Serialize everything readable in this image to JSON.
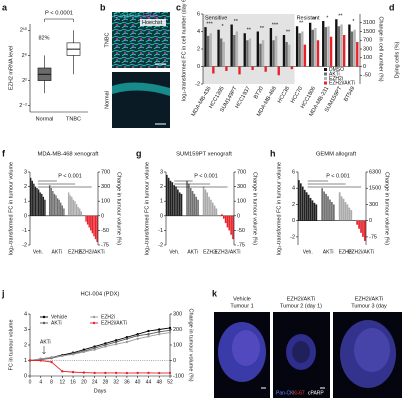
{
  "chart_data": [
    {
      "type": "box",
      "panel": "a",
      "title": "P < 0.0001",
      "annotation": "82%",
      "y_label": "EZH2 mRNA level",
      "categories": [
        "Normal",
        "TNBC"
      ],
      "boxes": [
        {
          "min": 0,
          "q1": 2,
          "median": 3,
          "q3": 4,
          "max": 6,
          "color": "#6b6b6b"
        },
        {
          "min": 3,
          "q1": 6,
          "median": 7,
          "q3": 8,
          "max": 10,
          "color": "#ffffff"
        }
      ],
      "ylim": [
        -3,
        11
      ],
      "yticks": [
        {
          "value": -2,
          "label": "2⁻²"
        },
        {
          "value": 2,
          "label": "2²"
        },
        {
          "value": 6,
          "label": "2⁶"
        },
        {
          "value": 10,
          "label": "2¹⁰"
        }
      ]
    },
    {
      "type": "bar",
      "panel": "c",
      "y_label": "log₂-transformed FC in cell number (day 6)",
      "y2_label": "Change in cell number (%)",
      "groups": [
        {
          "name": "Sensitive",
          "categories": [
            "MDA-MB-436",
            "HCC1395",
            "SUM149PT",
            "HCC1937",
            "BT20",
            "MDA-MB-468",
            "HCC38"
          ]
        },
        {
          "name": "Resistant",
          "categories": [
            "HCC70",
            "HCC1806",
            "MDA-MB-231",
            "SUM159PT",
            "BT549"
          ]
        }
      ],
      "series": [
        {
          "name": "DMSO",
          "color": "#111111",
          "values": [
            4.5,
            4.2,
            4.8,
            3.8,
            4.0,
            4.4,
            3.6,
            4.6,
            5.0,
            5.2,
            5.4,
            4.8
          ]
        },
        {
          "name": "AKTi",
          "color": "#6e6e6e",
          "values": [
            3.5,
            3.2,
            3.6,
            3.0,
            2.6,
            3.0,
            2.8,
            3.8,
            4.2,
            4.5,
            4.6,
            4.0
          ]
        },
        {
          "name": "EZH2i",
          "color": "#b5b5b5",
          "values": [
            3.8,
            2.8,
            4.0,
            3.2,
            3.0,
            3.5,
            2.5,
            4.0,
            4.4,
            4.6,
            4.8,
            4.2
          ]
        },
        {
          "name": "EZH2i/AKTi",
          "color": "#e8212a",
          "values": [
            -0.8,
            -0.5,
            -0.9,
            -0.4,
            -0.6,
            -1.0,
            -0.3,
            2.5,
            3.0,
            3.4,
            3.6,
            2.8
          ]
        }
      ],
      "significance": [
        "***",
        "*",
        "**",
        "**",
        "**",
        "***",
        "**",
        "**",
        "**",
        "*",
        "**",
        "*"
      ],
      "ylim": [
        -2,
        6
      ],
      "yticks": [
        -2,
        0,
        2,
        4,
        6
      ],
      "y2scale": "log2 fold change",
      "y2ticks": [
        -50,
        0,
        100,
        300,
        700,
        1500,
        3100
      ],
      "legend": "lower right"
    },
    {
      "type": "waterfall",
      "panel": "f",
      "title": "MDA-MB-468 xenograft",
      "annotation": "P < 0.001",
      "y_label": "log₂-transformed FC in tumour volume",
      "y2_label": "Change in tumour volume (%)",
      "series": [
        {
          "name": "Veh.",
          "color": "#222222",
          "values": [
            2.6,
            2.4,
            2.2,
            2.0,
            1.9,
            1.8,
            1.6,
            1.5,
            1.3,
            1.1
          ]
        },
        {
          "name": "AKTi",
          "color": "#707070",
          "values": [
            2.1,
            1.9,
            1.7,
            1.5,
            1.4,
            1.2,
            1.1,
            0.9,
            0.7,
            0.5
          ]
        },
        {
          "name": "EZH2i",
          "color": "#ababab",
          "values": [
            1.6,
            1.4,
            1.3,
            1.1,
            1.0,
            0.8,
            0.6,
            0.5,
            0.3
          ]
        },
        {
          "name": "EZH2i/AKTi",
          "color": "#e8212a",
          "values": [
            -0.4,
            -0.6,
            -0.8,
            -1.0,
            -1.2,
            -1.4,
            -1.6,
            -1.8
          ]
        }
      ],
      "ylim": [
        -2,
        3
      ],
      "yticks": [
        -2,
        -1,
        0,
        1,
        2,
        3
      ],
      "y2scale": "log2 fold change",
      "y2ticks": [
        -75,
        -50,
        0,
        100,
        300,
        700
      ]
    },
    {
      "type": "waterfall",
      "panel": "g",
      "title": "SUM159PT xenograft",
      "annotation": "P < 0.001",
      "y_label": "log₂-transformed FC in tumour volume",
      "y2_label": "Change in tumour volume (%)",
      "series": [
        {
          "name": "Veh.",
          "color": "#222222",
          "values": [
            2.8,
            2.6,
            2.4,
            2.3,
            2.1,
            2.0,
            1.8,
            1.6,
            1.5
          ]
        },
        {
          "name": "AKTi",
          "color": "#707070",
          "values": [
            2.4,
            2.2,
            1.9,
            1.7,
            1.5,
            1.3,
            1.1
          ]
        },
        {
          "name": "EZH2i",
          "color": "#ababab",
          "values": [
            2.0,
            1.8,
            1.6,
            1.3,
            1.1,
            0.9,
            0.7,
            0.5
          ]
        },
        {
          "name": "EZH2i/AKTi",
          "color": "#e8212a",
          "values": [
            0.1,
            -0.2,
            -0.5,
            -0.8,
            -1.0,
            -1.3,
            -1.6
          ]
        }
      ],
      "ylim": [
        -2,
        3
      ],
      "yticks": [
        -2,
        -1,
        0,
        1,
        2,
        3
      ],
      "y2scale": "log2 fold change",
      "y2ticks": [
        -75,
        -50,
        0,
        100,
        300,
        700
      ]
    },
    {
      "type": "waterfall",
      "panel": "h",
      "title": "GEMM allograft",
      "annotation": "P < 0.001",
      "y_label": "log₂-transformed FC in tumour volume",
      "y2_label": "Change in tumour volume (%)",
      "series": [
        {
          "name": "Veh.",
          "color": "#222222",
          "values": [
            5.0,
            4.6,
            4.2,
            3.8,
            3.5,
            3.2,
            2.8,
            2.5,
            2.2,
            2.0
          ]
        },
        {
          "name": "AKTi",
          "color": "#707070",
          "values": [
            4.0,
            3.6,
            3.3,
            3.0,
            2.6,
            2.3,
            2.0
          ]
        },
        {
          "name": "EZH2i",
          "color": "#ababab",
          "values": [
            3.5,
            3.0,
            2.7,
            2.3,
            2.0,
            1.6,
            1.3
          ]
        },
        {
          "name": "EZH2i/AKTi",
          "color": "#e8212a",
          "values": [
            -0.5,
            -1.0,
            -1.5,
            -2.0,
            -2.5
          ]
        }
      ],
      "ylim": [
        -3,
        6
      ],
      "yticks": [
        -2,
        0,
        2,
        4,
        6
      ],
      "y2scale": "log2 fold change",
      "y2ticks": [
        -75,
        0,
        300,
        1500,
        6300
      ]
    },
    {
      "type": "line",
      "panel": "j",
      "title": "HCI-004 (PDX)",
      "annotation": "AKTi",
      "x_label": "Days",
      "y_label": "FC in tumour volume",
      "y2_label": "Change in tumour volume (%)",
      "x": [
        0,
        4,
        8,
        12,
        16,
        20,
        24,
        28,
        32,
        36,
        40,
        44,
        48,
        52
      ],
      "series": [
        {
          "name": "Vehicle",
          "color": "#000000",
          "values": [
            1.0,
            1.1,
            1.2,
            1.35,
            1.5,
            1.7,
            1.9,
            2.1,
            2.3,
            2.5,
            2.7,
            2.9,
            3.0,
            3.1
          ]
        },
        {
          "name": "AKTi",
          "color": "#5a5a5a",
          "values": [
            1.0,
            1.05,
            1.15,
            1.3,
            1.45,
            1.6,
            1.8,
            2.0,
            2.2,
            2.4,
            2.6,
            2.7,
            2.85,
            2.95
          ]
        },
        {
          "name": "EZH2i",
          "color": "#9a9a9a",
          "values": [
            1.0,
            1.1,
            1.2,
            1.3,
            1.4,
            1.55,
            1.7,
            1.9,
            2.05,
            2.2,
            2.4,
            2.55,
            2.7,
            2.8
          ]
        },
        {
          "name": "EZH2i/AKTi",
          "color": "#e8212a",
          "values": [
            1.0,
            1.0,
            0.9,
            0.3,
            0.25,
            0.22,
            0.2,
            0.2,
            0.2,
            0.19,
            0.2,
            0.2,
            0.19,
            0.2
          ]
        }
      ],
      "xlim": [
        0,
        52
      ],
      "xticks": [
        0,
        4,
        8,
        12,
        16,
        20,
        24,
        28,
        32,
        36,
        40,
        44,
        48,
        52
      ],
      "ylim": [
        0,
        4
      ],
      "yticks": [
        0,
        1,
        2,
        3,
        4
      ],
      "y2lim": [
        -100,
        300
      ],
      "y2ticks": [
        -100,
        0,
        100,
        200,
        300
      ]
    }
  ],
  "image_panels": {
    "b": {
      "panel": "b",
      "stains": [
        "E-cadherin",
        "EZH2",
        "Hoechst"
      ],
      "rows": [
        "TNBC",
        "Normal"
      ]
    },
    "d": {
      "panel": "d",
      "y_label": "Dying cells (%)"
    },
    "k": {
      "panel": "k",
      "tumours": [
        {
          "group": "Vehicle",
          "name": "Tumour 1"
        },
        {
          "group": "EZH2i/AKTi",
          "name": "Tumour 2 (day 1)"
        },
        {
          "group": "EZH2i/AKTi",
          "name": "Tumour 3 (day"
        }
      ],
      "stains": [
        "Pan-CK",
        "Ki-67",
        "cPARP"
      ]
    }
  }
}
